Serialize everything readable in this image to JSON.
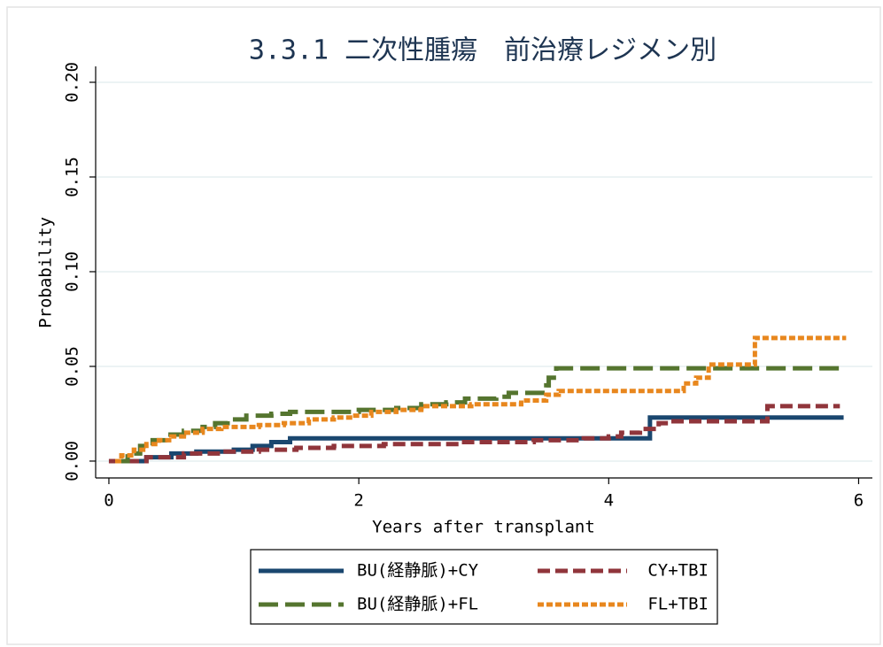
{
  "chart_data": {
    "type": "line",
    "step": true,
    "title": "3.3.1 二次性腫瘍　前治療レジメン別",
    "x_label": "Years after transplant",
    "y_label": "Probability",
    "xlim": [
      -0.106,
      6.11
    ],
    "ylim": [
      -0.0089,
      0.2084
    ],
    "xticks": [
      0,
      2,
      4,
      6
    ],
    "yticks": [
      {
        "value": 0,
        "label": "0.00"
      },
      0.05,
      {
        "value": 0.1,
        "label": "0.10"
      },
      0.15,
      {
        "value": 0.2,
        "label": "0.20"
      }
    ],
    "grid": true,
    "legend": "bottom",
    "series": [
      {
        "name": "BU(経静脈)+CY",
        "color": "#1a476f",
        "style": "solid",
        "x": [
          0,
          0.3,
          0.5,
          0.7,
          1.0,
          1.15,
          1.3,
          1.45,
          4.33,
          5.88
        ],
        "values": [
          0,
          0.002,
          0.004,
          0.005,
          0.006,
          0.008,
          0.01,
          0.012,
          0.023,
          0.023
        ]
      },
      {
        "name": "CY+TBI",
        "color": "#90353b",
        "style": "dash",
        "x": [
          0,
          0.3,
          0.6,
          0.9,
          1.2,
          1.5,
          1.8,
          2.2,
          2.8,
          3.4,
          3.8,
          4.0,
          4.1,
          4.25,
          4.4,
          4.5,
          5.27,
          5.85
        ],
        "values": [
          0,
          0.002,
          0.004,
          0.005,
          0.006,
          0.007,
          0.008,
          0.009,
          0.01,
          0.011,
          0.012,
          0.013,
          0.015,
          0.017,
          0.02,
          0.021,
          0.029,
          0.029
        ]
      },
      {
        "name": "BU(経静脈)+FL",
        "color": "#55752f",
        "style": "longdash",
        "x": [
          0.05,
          0.15,
          0.25,
          0.35,
          0.45,
          0.6,
          0.75,
          0.85,
          0.95,
          1.1,
          1.3,
          1.45,
          2.0,
          2.3,
          2.5,
          2.7,
          2.85,
          3.1,
          3.2,
          3.5,
          3.52,
          3.58,
          5.85
        ],
        "values": [
          0,
          0.004,
          0.008,
          0.011,
          0.014,
          0.016,
          0.018,
          0.02,
          0.022,
          0.024,
          0.025,
          0.026,
          0.027,
          0.028,
          0.03,
          0.031,
          0.033,
          0.034,
          0.036,
          0.04,
          0.044,
          0.049,
          0.049
        ]
      },
      {
        "name": "FL+TBI",
        "color": "#e8871e",
        "style": "shortdash",
        "x": [
          0.05,
          0.1,
          0.2,
          0.3,
          0.4,
          0.5,
          0.6,
          0.75,
          0.9,
          1.2,
          1.4,
          1.6,
          1.8,
          1.95,
          2.1,
          2.3,
          2.5,
          2.9,
          3.3,
          3.5,
          3.6,
          4.6,
          4.7,
          4.8,
          5.17,
          5.9
        ],
        "values": [
          0,
          0.003,
          0.006,
          0.009,
          0.011,
          0.013,
          0.015,
          0.017,
          0.018,
          0.019,
          0.02,
          0.022,
          0.023,
          0.024,
          0.026,
          0.027,
          0.029,
          0.03,
          0.032,
          0.035,
          0.037,
          0.041,
          0.044,
          0.051,
          0.065,
          0.065
        ]
      }
    ]
  }
}
